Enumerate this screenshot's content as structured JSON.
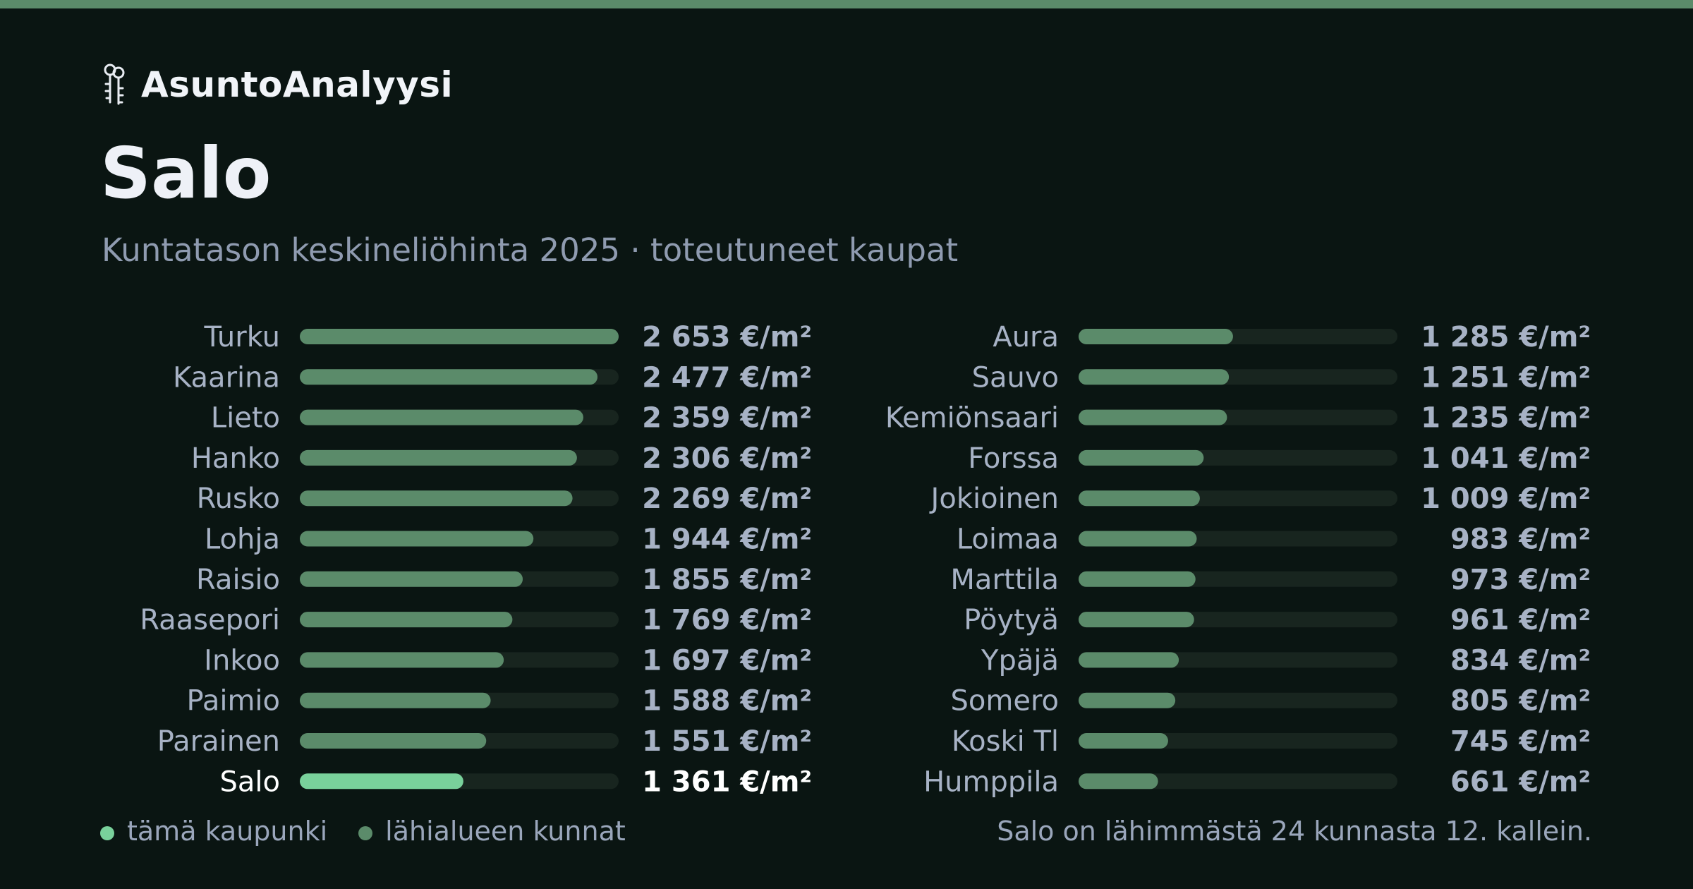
{
  "brand": {
    "name": "AsuntoAnalyysi",
    "icon": "keys-icon"
  },
  "title": "Salo",
  "subtitle": "Kuntatason keskineliöhinta 2025 · toteutuneet kaupat",
  "colors": {
    "background": "#0a1512",
    "accent_bar": "#5b8b6a",
    "bar_neighbor": "#5b8b6a",
    "bar_highlight": "#79d19b",
    "track": "#18251f",
    "label": "#a7b2c5",
    "highlight_label": "#ffffff"
  },
  "legend": {
    "this_city": "tämä kaupunki",
    "neighbors": "lähialueen kunnat"
  },
  "note": "Salo on lähimmästä 24 kunnasta 12. kallein.",
  "chart_data": {
    "type": "bar",
    "orientation": "horizontal",
    "unit": "€/m²",
    "max": 2653,
    "highlight": "Salo",
    "columns": [
      {
        "rows": [
          {
            "name": "Turku",
            "value": 2653,
            "label": "2 653 €/m²"
          },
          {
            "name": "Kaarina",
            "value": 2477,
            "label": "2 477 €/m²"
          },
          {
            "name": "Lieto",
            "value": 2359,
            "label": "2 359 €/m²"
          },
          {
            "name": "Hanko",
            "value": 2306,
            "label": "2 306 €/m²"
          },
          {
            "name": "Rusko",
            "value": 2269,
            "label": "2 269 €/m²"
          },
          {
            "name": "Lohja",
            "value": 1944,
            "label": "1 944 €/m²"
          },
          {
            "name": "Raisio",
            "value": 1855,
            "label": "1 855 €/m²"
          },
          {
            "name": "Raasepori",
            "value": 1769,
            "label": "1 769 €/m²"
          },
          {
            "name": "Inkoo",
            "value": 1697,
            "label": "1 697 €/m²"
          },
          {
            "name": "Paimio",
            "value": 1588,
            "label": "1 588 €/m²"
          },
          {
            "name": "Parainen",
            "value": 1551,
            "label": "1 551 €/m²"
          },
          {
            "name": "Salo",
            "value": 1361,
            "label": "1 361 €/m²"
          }
        ]
      },
      {
        "rows": [
          {
            "name": "Aura",
            "value": 1285,
            "label": "1 285 €/m²"
          },
          {
            "name": "Sauvo",
            "value": 1251,
            "label": "1 251 €/m²"
          },
          {
            "name": "Kemiönsaari",
            "value": 1235,
            "label": "1 235 €/m²"
          },
          {
            "name": "Forssa",
            "value": 1041,
            "label": "1 041 €/m²"
          },
          {
            "name": "Jokioinen",
            "value": 1009,
            "label": "1 009 €/m²"
          },
          {
            "name": "Loimaa",
            "value": 983,
            "label": "983 €/m²"
          },
          {
            "name": "Marttila",
            "value": 973,
            "label": "973 €/m²"
          },
          {
            "name": "Pöytyä",
            "value": 961,
            "label": "961 €/m²"
          },
          {
            "name": "Ypäjä",
            "value": 834,
            "label": "834 €/m²"
          },
          {
            "name": "Somero",
            "value": 805,
            "label": "805 €/m²"
          },
          {
            "name": "Koski Tl",
            "value": 745,
            "label": "745 €/m²"
          },
          {
            "name": "Humppila",
            "value": 661,
            "label": "661 €/m²"
          }
        ]
      }
    ]
  }
}
